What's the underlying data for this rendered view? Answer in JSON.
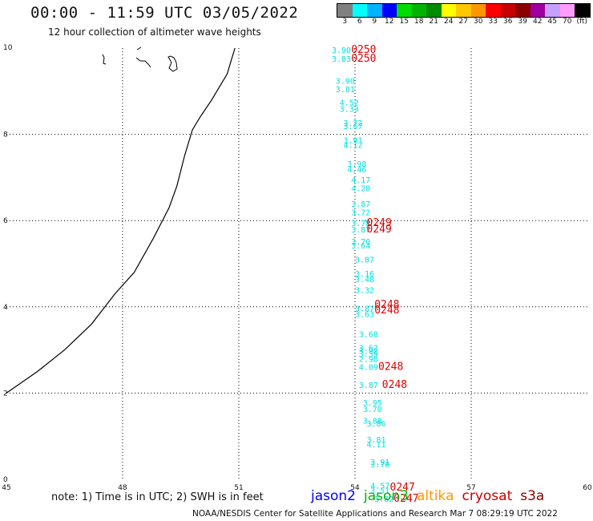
{
  "title": "00:00 - 11:59 UTC 03/05/2022",
  "subtitle": "12 hour collection of altimeter wave heights",
  "legend": {
    "colors": [
      "#808080",
      "#00ffff",
      "#00b4ff",
      "#0000ff",
      "#00dc00",
      "#00b400",
      "#008c00",
      "#ffff00",
      "#ffc800",
      "#ff9600",
      "#ff0000",
      "#c80000",
      "#8c0000",
      "#a000a0",
      "#c8a0ff",
      "#ff9cff",
      "#000000"
    ],
    "labels": [
      "3",
      "6",
      "9",
      "12",
      "15",
      "18",
      "21",
      "24",
      "27",
      "30",
      "33",
      "36",
      "39",
      "42",
      "45",
      "70",
      "(ft)"
    ]
  },
  "note": "note: 1) Time is in UTC; 2) SWH is in feet",
  "satellites": [
    {
      "name": "jason2",
      "color": "#0000ff"
    },
    {
      "name": "jason3",
      "color": "#00b400"
    },
    {
      "name": "altika",
      "color": "#ff9600"
    },
    {
      "name": "cryosat",
      "color": "#c80000"
    },
    {
      "name": "s3a",
      "color": "#8c0000"
    }
  ],
  "footer": "NOAA/NESDIS Center for Satellite Applications and Research   Mar  7 08:29:19 UTC 2022",
  "chart_data": {
    "type": "scatter",
    "xlim": [
      45,
      60
    ],
    "ylim": [
      0,
      10
    ],
    "x_ticks": [
      "45",
      "48",
      "51",
      "54",
      "57",
      "60"
    ],
    "y_ticks": [
      "0",
      "2",
      "4",
      "6",
      "8",
      "10"
    ],
    "grid": true,
    "coastline": [
      [
        50.9,
        10
      ],
      [
        50.8,
        9.7
      ],
      [
        50.7,
        9.4
      ],
      [
        50.5,
        9.1
      ],
      [
        50.3,
        8.8
      ],
      [
        50.0,
        8.4
      ],
      [
        49.8,
        8.1
      ],
      [
        49.6,
        7.5
      ],
      [
        49.4,
        6.8
      ],
      [
        49.2,
        6.3
      ],
      [
        48.8,
        5.6
      ],
      [
        48.3,
        4.8
      ],
      [
        47.8,
        4.3
      ],
      [
        47.2,
        3.6
      ],
      [
        46.5,
        3.0
      ],
      [
        45.8,
        2.5
      ],
      [
        45.0,
        2.0
      ]
    ],
    "series": [
      {
        "name": "jason3",
        "color": "#00e0e0",
        "points": [
          {
            "x": 53.4,
            "y": 9.96,
            "label": "3.90"
          },
          {
            "x": 53.4,
            "y": 9.76,
            "label": "3.83"
          },
          {
            "x": 53.5,
            "y": 9.25,
            "label": "3.90"
          },
          {
            "x": 53.5,
            "y": 9.05,
            "label": "3.81"
          },
          {
            "x": 53.6,
            "y": 8.75,
            "label": "4.52"
          },
          {
            "x": 53.6,
            "y": 8.6,
            "label": "3.33"
          },
          {
            "x": 53.7,
            "y": 8.27,
            "label": "3.72"
          },
          {
            "x": 53.7,
            "y": 8.2,
            "label": "3.67"
          },
          {
            "x": 53.7,
            "y": 7.87,
            "label": "3.91"
          },
          {
            "x": 53.7,
            "y": 7.76,
            "label": "4.12"
          },
          {
            "x": 53.8,
            "y": 7.32,
            "label": "3.98"
          },
          {
            "x": 53.8,
            "y": 7.19,
            "label": "4.46"
          },
          {
            "x": 53.9,
            "y": 6.95,
            "label": "4.17"
          },
          {
            "x": 53.9,
            "y": 6.76,
            "label": "4.28"
          },
          {
            "x": 53.9,
            "y": 6.39,
            "label": "3.87"
          },
          {
            "x": 53.9,
            "y": 6.2,
            "label": "3.72"
          },
          {
            "x": 53.9,
            "y": 5.95,
            "label": "3.78"
          },
          {
            "x": 53.9,
            "y": 5.8,
            "label": "3.87"
          },
          {
            "x": 53.9,
            "y": 5.52,
            "label": "3.70"
          },
          {
            "x": 53.9,
            "y": 5.43,
            "label": "3.64"
          },
          {
            "x": 54.0,
            "y": 5.1,
            "label": "3.87"
          },
          {
            "x": 54.0,
            "y": 4.78,
            "label": "3.16"
          },
          {
            "x": 54.0,
            "y": 4.65,
            "label": "3.48"
          },
          {
            "x": 54.0,
            "y": 4.4,
            "label": "3.32"
          },
          {
            "x": 54.0,
            "y": 3.97,
            "label": "3.87"
          },
          {
            "x": 54.0,
            "y": 3.84,
            "label": "3.63"
          },
          {
            "x": 54.1,
            "y": 3.37,
            "label": "3.68"
          },
          {
            "x": 54.1,
            "y": 3.06,
            "label": "3.62"
          },
          {
            "x": 54.1,
            "y": 2.98,
            "label": "3.92"
          },
          {
            "x": 54.1,
            "y": 2.92,
            "label": "3.59"
          },
          {
            "x": 54.1,
            "y": 2.8,
            "label": "2.98"
          },
          {
            "x": 54.1,
            "y": 2.61,
            "label": "4.09"
          },
          {
            "x": 54.1,
            "y": 2.19,
            "label": "3.87"
          },
          {
            "x": 54.2,
            "y": 1.78,
            "label": "3.95"
          },
          {
            "x": 54.2,
            "y": 1.64,
            "label": "3.70"
          },
          {
            "x": 54.2,
            "y": 1.37,
            "label": "3.88"
          },
          {
            "x": 54.3,
            "y": 1.3,
            "label": "3.86"
          },
          {
            "x": 54.3,
            "y": 0.93,
            "label": "3.81"
          },
          {
            "x": 54.3,
            "y": 0.82,
            "label": "4.11"
          },
          {
            "x": 54.4,
            "y": 0.41,
            "label": "3.91"
          },
          {
            "x": 54.4,
            "y": 0.35,
            "label": "3.70"
          },
          {
            "x": 54.4,
            "y": -0.14,
            "label": "4.57"
          },
          {
            "x": 54.4,
            "y": -0.25,
            "label": "3.51"
          },
          {
            "x": 54.5,
            "y": -0.45,
            "label": "3.82"
          }
        ]
      },
      {
        "name": "cryosat",
        "color": "#e00000",
        "points": [
          {
            "x": 53.9,
            "y": 9.96,
            "label": "0250"
          },
          {
            "x": 53.9,
            "y": 9.76,
            "label": "0250"
          },
          {
            "x": 54.3,
            "y": 5.95,
            "label": "0249"
          },
          {
            "x": 54.3,
            "y": 5.8,
            "label": "0249"
          },
          {
            "x": 54.5,
            "y": 4.05,
            "label": "0248"
          },
          {
            "x": 54.5,
            "y": 3.92,
            "label": "0248"
          },
          {
            "x": 54.6,
            "y": 2.61,
            "label": "0248"
          },
          {
            "x": 54.7,
            "y": 2.19,
            "label": "0248"
          },
          {
            "x": 54.9,
            "y": -0.19,
            "label": "0247"
          },
          {
            "x": 55.0,
            "y": -0.45,
            "label": "0247"
          }
        ]
      }
    ]
  }
}
